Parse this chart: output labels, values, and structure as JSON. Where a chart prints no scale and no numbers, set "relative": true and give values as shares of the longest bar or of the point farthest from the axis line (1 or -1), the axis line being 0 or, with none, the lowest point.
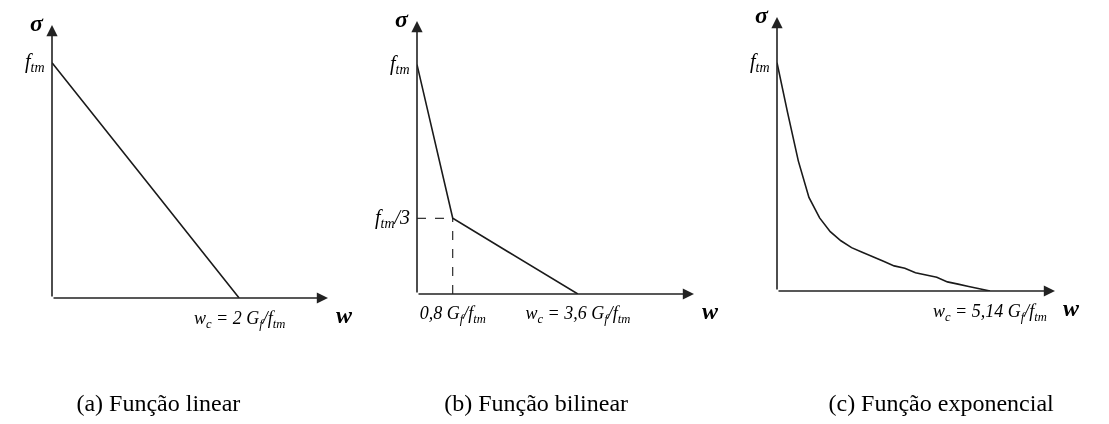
{
  "chart_data": [
    {
      "type": "line",
      "relative": true,
      "title": "(a) Função linear",
      "xlabel": "w",
      "ylabel": "σ",
      "categories": [
        null,
        null,
        null
      ],
      "series": [
        {
          "color": "#1a1a1a",
          "values": [
            1,
            0.5,
            0
          ]
        }
      ],
      "annotations": [
        "f$_{tm}$",
        {
          "text": "w$_{c}$ = 2 G$_{f}$/f$_{tm}$",
          "y": 0
        }
      ]
    },
    {
      "type": "line",
      "relative": true,
      "title": "(b) Função bilinear",
      "xlabel": "w",
      "ylabel": "σ",
      "x": [
        0,
        0.8,
        3.6
      ],
      "xlim": [
        0,
        6.2
      ],
      "xticks": [
        {
          "value": 0.8,
          "label": "0,8 G$_{f}$/f$_{tm}$"
        },
        {
          "value": 3.6,
          "label": "w$_{c}$ = 3,6 G$_{f}$/f$_{tm}$"
        }
      ],
      "series": [
        {
          "color": "#1a1a1a",
          "values": [
            1,
            0.33,
            0
          ]
        }
      ],
      "annotations": [
        {
          "text": "f$_{tm}$",
          "x": 0,
          "y": 1
        }
      ],
      "ref_lines": [
        {
          "axis": "x",
          "value": 0.8,
          "line_style": "dashed"
        },
        {
          "axis": "y",
          "value": 0.33,
          "line_style": "dashed",
          "label": "f$_{tm}$/3"
        }
      ]
    },
    {
      "type": "line",
      "relative": true,
      "title": "(c) Função exponencial",
      "xlabel": "w",
      "ylabel": "σ",
      "categories": [
        null,
        null,
        null,
        null,
        null,
        null,
        null,
        null,
        null,
        null,
        null,
        null,
        null,
        null,
        null,
        null,
        null,
        null,
        null,
        null,
        null
      ],
      "series": [
        {
          "color": "#1a1a1a",
          "values": [
            1,
            0.78,
            0.57,
            0.41,
            0.32,
            0.26,
            0.22,
            0.19,
            0.17,
            0.15,
            0.13,
            0.11,
            0.1,
            0.08,
            0.07,
            0.06,
            0.04,
            0.03,
            0.02,
            0.01,
            0
          ]
        }
      ],
      "annotations": [
        "f$_{tm}$",
        {
          "text": "w$_{c}$ = 5,14 G$_{f}$/f$_{tm}$",
          "y": 0
        }
      ]
    }
  ]
}
